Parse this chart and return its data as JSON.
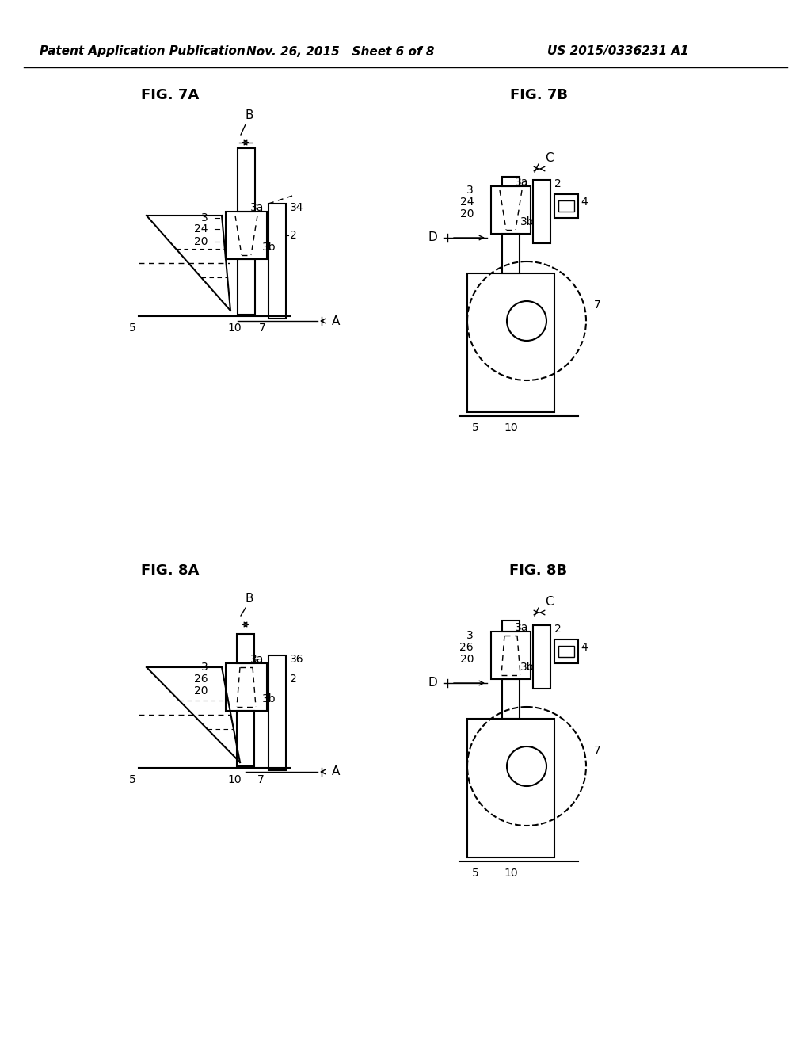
{
  "title_header": "Patent Application Publication",
  "date": "Nov. 26, 2015",
  "sheet": "Sheet 6 of 8",
  "patent_num": "US 2015/0336231 A1",
  "fig_labels": [
    "FIG. 7A",
    "FIG. 7B",
    "FIG. 8A",
    "FIG. 8B"
  ],
  "background": "#ffffff",
  "line_color": "#000000",
  "dashed_color": "#000000"
}
